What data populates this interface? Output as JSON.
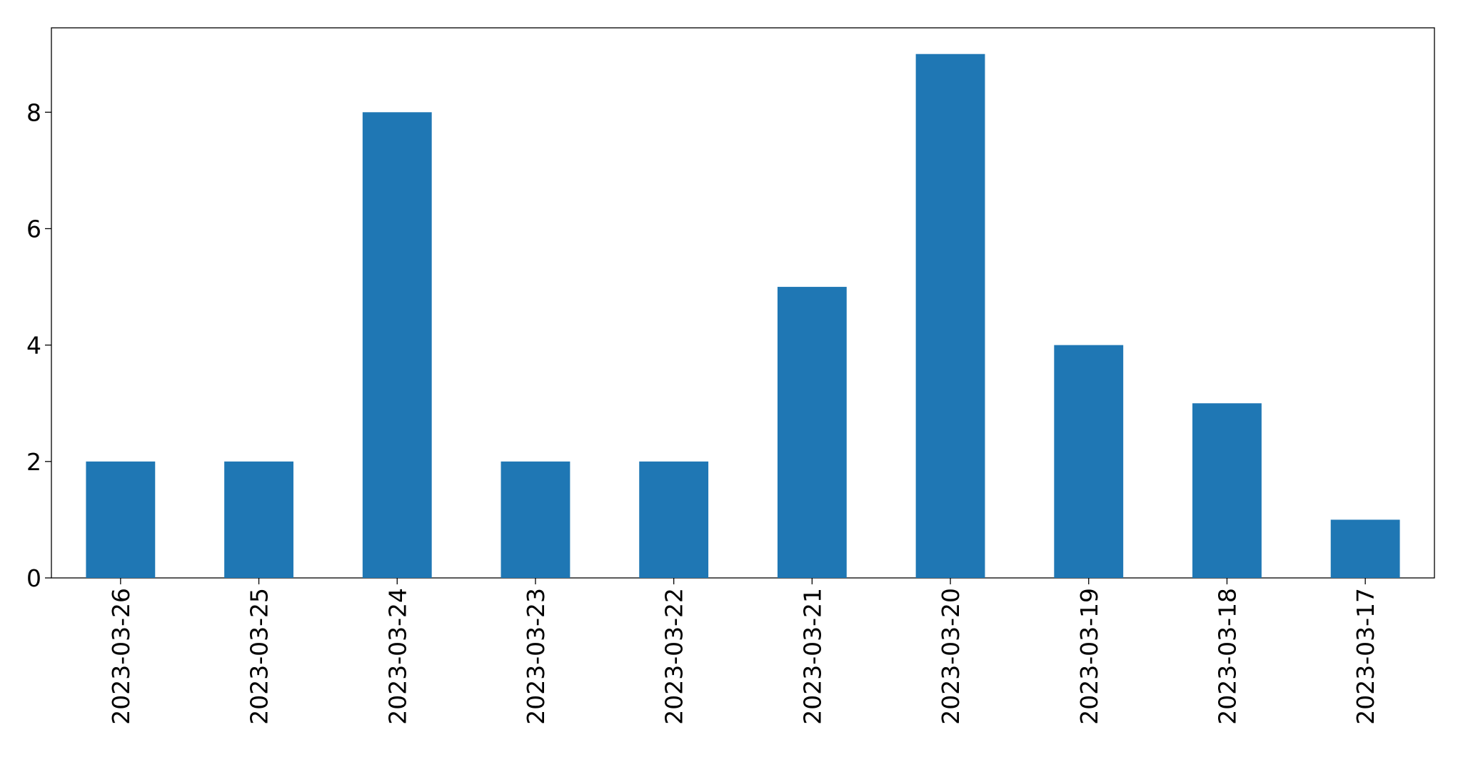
{
  "chart_data": {
    "type": "bar",
    "categories": [
      "2023-03-26",
      "2023-03-25",
      "2023-03-24",
      "2023-03-23",
      "2023-03-22",
      "2023-03-21",
      "2023-03-20",
      "2023-03-19",
      "2023-03-18",
      "2023-03-17"
    ],
    "values": [
      2,
      2,
      8,
      2,
      2,
      5,
      9,
      4,
      3,
      1
    ],
    "color": "#1f77b4",
    "ylim": [
      0,
      9.45
    ],
    "yticks": [
      0,
      2,
      4,
      6,
      8
    ],
    "grid": false
  }
}
